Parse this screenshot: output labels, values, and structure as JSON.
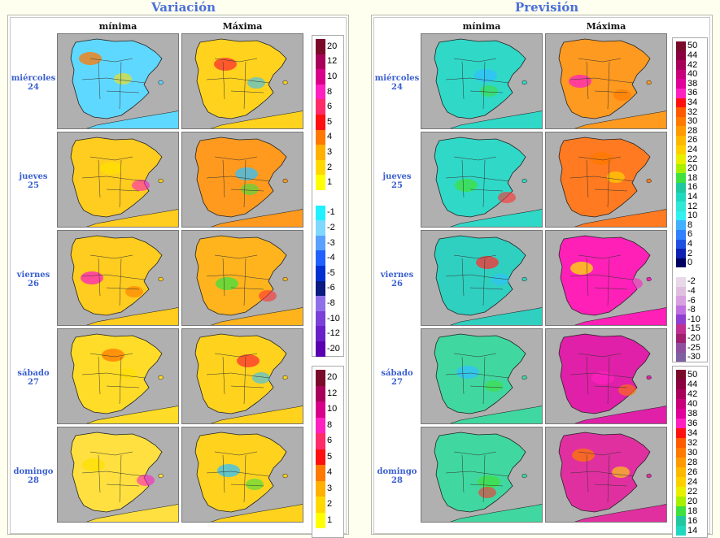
{
  "variacion": {
    "title": "Variación",
    "columns": [
      "mínima",
      "Máxima"
    ],
    "days": [
      {
        "name": "miércoles",
        "num": "24"
      },
      {
        "name": "jueves",
        "num": "25"
      },
      {
        "name": "viernes",
        "num": "26"
      },
      {
        "name": "sábado",
        "num": "27"
      },
      {
        "name": "domingo",
        "num": "28"
      }
    ],
    "maps": [
      [
        "#5fd8ff",
        "#ffd21e"
      ],
      [
        "#ffcc20",
        "#ff9a1e"
      ],
      [
        "#ffcc20",
        "#ffb41e"
      ],
      [
        "#ffdc28",
        "#ffd21e"
      ],
      [
        "#ffe040",
        "#ffd21e"
      ]
    ],
    "legend1": [
      {
        "label": "20",
        "color": "#7a0a2a"
      },
      {
        "label": "12",
        "color": "#a8005a"
      },
      {
        "label": "10",
        "color": "#d8008a"
      },
      {
        "label": "8",
        "color": "#ff20c0"
      },
      {
        "label": "6",
        "color": "#ff2a6a"
      },
      {
        "label": "5",
        "color": "#ff1010"
      },
      {
        "label": "4",
        "color": "#ff7800"
      },
      {
        "label": "3",
        "color": "#ffb000"
      },
      {
        "label": "2",
        "color": "#ffd800"
      },
      {
        "label": "1",
        "color": "#ffff00"
      },
      {
        "label": "",
        "color": "#ffffff"
      },
      {
        "label": "-1",
        "color": "#20f0ff"
      },
      {
        "label": "-2",
        "color": "#80d8ff"
      },
      {
        "label": "-3",
        "color": "#5aa0ff"
      },
      {
        "label": "-4",
        "color": "#2060ff"
      },
      {
        "label": "-5",
        "color": "#0030d0"
      },
      {
        "label": "-6",
        "color": "#0a1a80"
      },
      {
        "label": "-8",
        "color": "#9070e8"
      },
      {
        "label": "-10",
        "color": "#7a40d8"
      },
      {
        "label": "-12",
        "color": "#6a20c8"
      },
      {
        "label": "-20",
        "color": "#5a00b0"
      }
    ],
    "legend2": [
      {
        "label": "20",
        "color": "#7a0a2a"
      },
      {
        "label": "12",
        "color": "#a8005a"
      },
      {
        "label": "10",
        "color": "#d8008a"
      },
      {
        "label": "8",
        "color": "#ff20c0"
      },
      {
        "label": "6",
        "color": "#ff2a6a"
      },
      {
        "label": "5",
        "color": "#ff1010"
      },
      {
        "label": "4",
        "color": "#ff7800"
      },
      {
        "label": "3",
        "color": "#ffb000"
      },
      {
        "label": "2",
        "color": "#ffd800"
      },
      {
        "label": "1",
        "color": "#ffff00"
      }
    ]
  },
  "prevision": {
    "title": "Previsión",
    "columns": [
      "mínima",
      "Máxima"
    ],
    "days": [
      {
        "name": "miércoles",
        "num": "24"
      },
      {
        "name": "jueves",
        "num": "25"
      },
      {
        "name": "viernes",
        "num": "26"
      },
      {
        "name": "sábado",
        "num": "27"
      },
      {
        "name": "domingo",
        "num": "28"
      }
    ],
    "maps": [
      [
        "#30d8c8",
        "#ff9a20"
      ],
      [
        "#30d8c8",
        "#ff7a20"
      ],
      [
        "#30d0c0",
        "#ff20b8"
      ],
      [
        "#40d8a0",
        "#e020a8"
      ],
      [
        "#40d8a0",
        "#e030a0"
      ]
    ],
    "legend1": [
      {
        "label": "50",
        "color": "#7a0a2a"
      },
      {
        "label": "44",
        "color": "#8a0040"
      },
      {
        "label": "42",
        "color": "#a8005a"
      },
      {
        "label": "40",
        "color": "#c8007a"
      },
      {
        "label": "38",
        "color": "#e0009a"
      },
      {
        "label": "36",
        "color": "#ff20c0"
      },
      {
        "label": "34",
        "color": "#ff1010"
      },
      {
        "label": "32",
        "color": "#ff5a00"
      },
      {
        "label": "30",
        "color": "#ff7a00"
      },
      {
        "label": "28",
        "color": "#ff9a00"
      },
      {
        "label": "26",
        "color": "#ffb800"
      },
      {
        "label": "24",
        "color": "#ffd000"
      },
      {
        "label": "22",
        "color": "#e8f000"
      },
      {
        "label": "20",
        "color": "#a8f000"
      },
      {
        "label": "18",
        "color": "#40e040"
      },
      {
        "label": "16",
        "color": "#20c8a0"
      },
      {
        "label": "14",
        "color": "#20d8c0"
      },
      {
        "label": "12",
        "color": "#30e8d8"
      },
      {
        "label": "10",
        "color": "#30f0f0"
      },
      {
        "label": "8",
        "color": "#40b0ff"
      },
      {
        "label": "6",
        "color": "#3080ff"
      },
      {
        "label": "4",
        "color": "#2050e0"
      },
      {
        "label": "2",
        "color": "#1020b0"
      },
      {
        "label": "0",
        "color": "#000060"
      },
      {
        "label": "",
        "color": "#ffffff"
      },
      {
        "label": "-2",
        "color": "#e8d8e8"
      },
      {
        "label": "-4",
        "color": "#e0c0e0"
      },
      {
        "label": "-6",
        "color": "#d8a0e0"
      },
      {
        "label": "-8",
        "color": "#c070e0"
      },
      {
        "label": "-10",
        "color": "#9040d0"
      },
      {
        "label": "-15",
        "color": "#c03090"
      },
      {
        "label": "-20",
        "color": "#a02070"
      },
      {
        "label": "-25",
        "color": "#9050a0"
      },
      {
        "label": "-30",
        "color": "#8060a0"
      }
    ],
    "legend2": [
      {
        "label": "50",
        "color": "#7a0a2a"
      },
      {
        "label": "44",
        "color": "#8a0040"
      },
      {
        "label": "42",
        "color": "#a8005a"
      },
      {
        "label": "40",
        "color": "#c8007a"
      },
      {
        "label": "38",
        "color": "#e0009a"
      },
      {
        "label": "36",
        "color": "#ff20c0"
      },
      {
        "label": "34",
        "color": "#ff1010"
      },
      {
        "label": "32",
        "color": "#ff5a00"
      },
      {
        "label": "30",
        "color": "#ff7a00"
      },
      {
        "label": "28",
        "color": "#ff9a00"
      },
      {
        "label": "26",
        "color": "#ffb800"
      },
      {
        "label": "24",
        "color": "#ffd000"
      },
      {
        "label": "22",
        "color": "#e8f000"
      },
      {
        "label": "20",
        "color": "#a8f000"
      },
      {
        "label": "18",
        "color": "#40e040"
      },
      {
        "label": "16",
        "color": "#20c8a0"
      },
      {
        "label": "14",
        "color": "#20d8c0"
      }
    ]
  }
}
